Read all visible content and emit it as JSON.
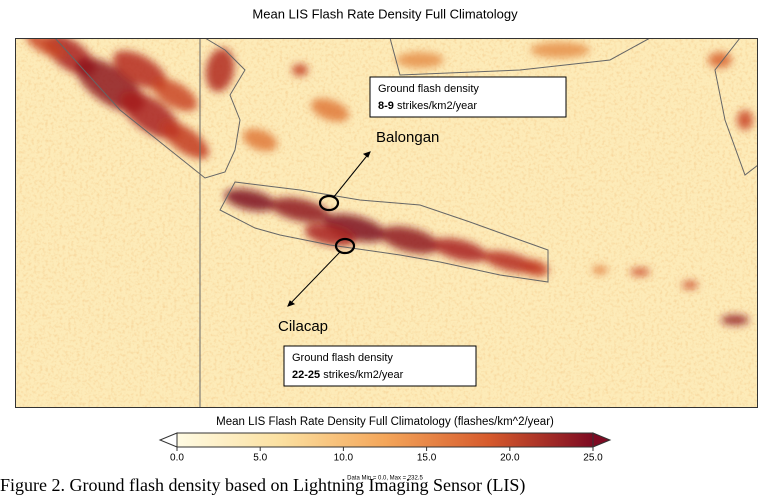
{
  "title": "Mean LIS Flash Rate Density Full Climatology",
  "annotations": [
    {
      "heading": "Ground flash density",
      "value": "8-9",
      "unit": "strikes/km2/year"
    },
    {
      "heading": "Ground flash density",
      "value": "22-25",
      "unit": "strikes/km2/year"
    }
  ],
  "labels": [
    "Balongan",
    "Cilacap"
  ],
  "colorbar": {
    "title": "Mean LIS Flash Rate Density Full Climatology (flashes/km^2/year)",
    "range": [
      0,
      25
    ],
    "ticks": [
      {
        "value": 0,
        "label": "0.0"
      },
      {
        "value": 5,
        "label": "5.0"
      },
      {
        "value": 10,
        "label": "10.0"
      },
      {
        "value": 15,
        "label": "15.0"
      },
      {
        "value": 20,
        "label": "20.0"
      },
      {
        "value": 25,
        "label": "25.0"
      }
    ],
    "note": "Data Min = 0.0, Max = 232.5"
  },
  "caption": "Figure 2. Ground flash density based on Lightning Imaging Sensor (LIS)"
}
